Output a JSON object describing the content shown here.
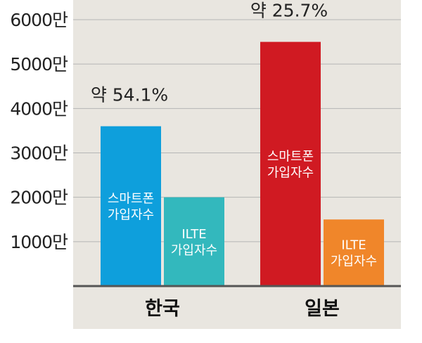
{
  "chart_data": {
    "type": "bar",
    "categories": [
      "한국",
      "일본"
    ],
    "ylim": [
      0,
      6000
    ],
    "y_ticks": [
      {
        "value": 1000,
        "label": "1000만"
      },
      {
        "value": 2000,
        "label": "2000만"
      },
      {
        "value": 3000,
        "label": "3000만"
      },
      {
        "value": 4000,
        "label": "4000만"
      },
      {
        "value": 5000,
        "label": "5000만"
      },
      {
        "value": 6000,
        "label": "6000만"
      }
    ],
    "grid": true,
    "bars": [
      {
        "category": "한국",
        "value": 3600,
        "label_lines": [
          "스마트폰",
          "가입자수"
        ],
        "color": "#0e9fdc",
        "label_color": "#ffffff",
        "annotation": "약 54.1%"
      },
      {
        "category": "한국",
        "value": 2000,
        "label_lines": [
          "ILTE",
          "가입자수"
        ],
        "color": "#33b8bd",
        "label_color": "#ffffff"
      },
      {
        "category": "일본",
        "value": 5500,
        "label_lines": [
          "스마트폰",
          "가입자수"
        ],
        "color": "#d01a22",
        "label_color": "#ffffff",
        "annotation": "약 25.7%"
      },
      {
        "category": "일본",
        "value": 1500,
        "label_lines": [
          "ILTE",
          "가입자수"
        ],
        "color": "#f0862a",
        "label_color": "#ffffff"
      }
    ],
    "colors": {
      "plot_background": "#e9e6e0",
      "axis": "#555555",
      "grid": "#b5b5b5"
    }
  }
}
